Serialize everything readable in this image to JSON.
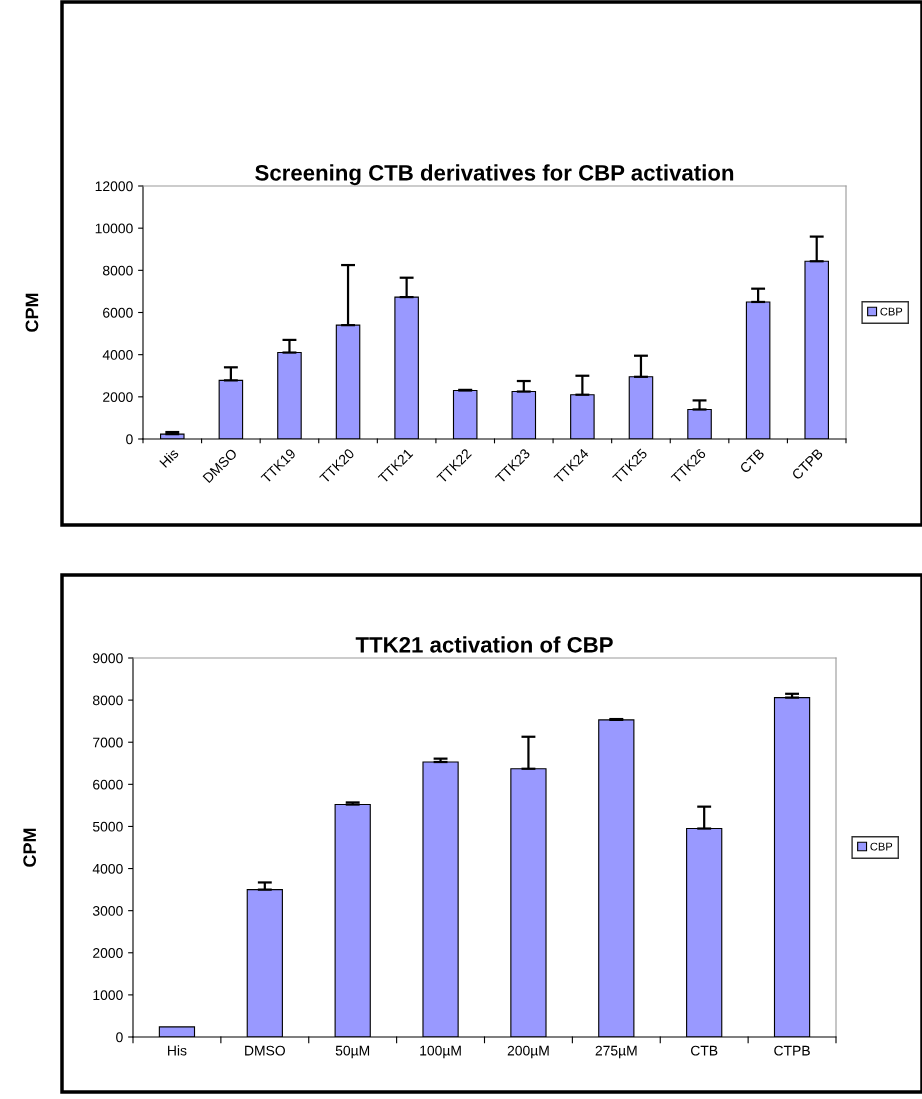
{
  "chart_data": [
    {
      "type": "bar",
      "title": "Screening CTB derivatives for CBP activation",
      "ylabel": "CPM",
      "categories": [
        "His",
        "DMSO",
        "TTK19",
        "TTK20",
        "TTK21",
        "TTK22",
        "TTK23",
        "TTK24",
        "TTK25",
        "TTK26",
        "CTB",
        "CTPB"
      ],
      "series": [
        {
          "name": "CBP",
          "color": "#9999ff",
          "values": [
            230,
            2780,
            4100,
            5400,
            6730,
            2300,
            2250,
            2100,
            2950,
            1400,
            6500,
            8430
          ],
          "errors": [
            [
              230,
              330
            ],
            [
              2780,
              3400
            ],
            [
              4100,
              4700
            ],
            [
              5400,
              8250
            ],
            [
              6730,
              7650
            ],
            [
              2300,
              2330
            ],
            [
              2250,
              2750
            ],
            [
              2100,
              3000
            ],
            [
              2950,
              3950
            ],
            [
              1400,
              1830
            ],
            [
              6500,
              7130
            ],
            [
              8430,
              9600
            ]
          ]
        }
      ],
      "ylim": [
        0,
        12000
      ],
      "yticks": [
        0,
        2000,
        4000,
        6000,
        8000,
        10000,
        12000
      ],
      "grid": false,
      "legend": "right"
    },
    {
      "type": "bar",
      "title": "TTK21 activation of CBP",
      "ylabel": "CPM",
      "categories": [
        "His",
        "DMSO",
        "50µM",
        "100µM",
        "200µM",
        "275µM",
        "CTB",
        "CTPB"
      ],
      "series": [
        {
          "name": "CBP",
          "color": "#9999ff",
          "values": [
            240,
            3500,
            5520,
            6530,
            6370,
            7530,
            4950,
            8060
          ],
          "errors": [
            null,
            [
              3500,
              3670
            ],
            [
              5520,
              5570
            ],
            [
              6530,
              6610
            ],
            [
              6370,
              7130
            ],
            [
              7530,
              7550
            ],
            [
              4950,
              5470
            ],
            [
              8060,
              8150
            ]
          ]
        }
      ],
      "ylim": [
        0,
        9000
      ],
      "yticks": [
        0,
        1000,
        2000,
        3000,
        4000,
        5000,
        6000,
        7000,
        8000,
        9000
      ],
      "grid": false,
      "legend": "right"
    }
  ]
}
